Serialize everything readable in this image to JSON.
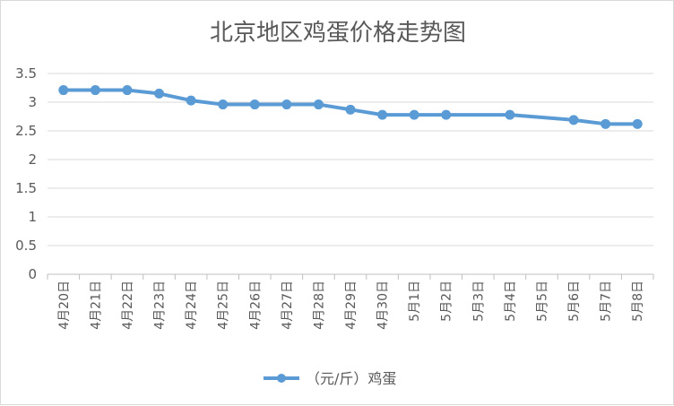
{
  "chart_data": {
    "type": "line",
    "title": "北京地区鸡蛋价格走势图",
    "categories": [
      "4月20日",
      "4月21日",
      "4月22日",
      "4月23日",
      "4月24日",
      "4月25日",
      "4月26日",
      "4月27日",
      "4月28日",
      "4月29日",
      "4月30日",
      "5月1日",
      "5月2日",
      "5月3日",
      "5月4日",
      "5月5日",
      "5月6日",
      "5月7日",
      "5月8日"
    ],
    "series": [
      {
        "name": "（元/斤）鸡蛋",
        "color": "#5B9BD5",
        "values": [
          3.21,
          3.21,
          3.21,
          3.15,
          3.03,
          2.96,
          2.96,
          2.96,
          2.96,
          2.87,
          2.78,
          2.78,
          2.78,
          null,
          2.78,
          null,
          2.69,
          2.62,
          2.62
        ]
      }
    ],
    "yticks": [
      "0",
      "0.5",
      "1",
      "1.5",
      "2",
      "2.5",
      "3",
      "3.5"
    ],
    "ylim": [
      0,
      3.5
    ],
    "grid": true,
    "legend_position": "bottom",
    "gridline_color": "#d9d9d9",
    "axis_color": "#bfbfbf"
  }
}
